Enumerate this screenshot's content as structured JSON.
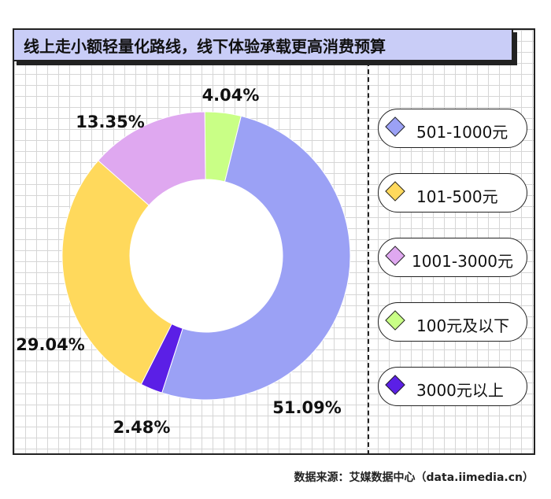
{
  "title": "线上走小额轻量化路线，线下体验承载更高消费预算",
  "source": "数据来源：艾媒数据中心（data.iimedia.cn）",
  "chart_data": {
    "type": "pie",
    "donut": true,
    "slices": [
      {
        "label": "501-1000元",
        "value": 51.09,
        "pct_label": "51.09%",
        "color": "#9ba1f5"
      },
      {
        "label": "3000元以上",
        "value": 2.48,
        "pct_label": "2.48%",
        "color": "#5b1fe6"
      },
      {
        "label": "101-500元",
        "value": 29.04,
        "pct_label": "29.04%",
        "color": "#ffd95c"
      },
      {
        "label": "1001-3000元",
        "value": 13.35,
        "pct_label": "13.35%",
        "color": "#dfa8f0"
      },
      {
        "label": "100元及以下",
        "value": 4.04,
        "pct_label": "4.04%",
        "color": "#c9ff86"
      }
    ],
    "legend": [
      {
        "label": "501-1000元",
        "color": "#9ba1f5"
      },
      {
        "label": "101-500元",
        "color": "#ffd95c"
      },
      {
        "label": "1001-3000元",
        "color": "#dfa8f0"
      },
      {
        "label": "100元及以下",
        "color": "#c9ff86"
      },
      {
        "label": "3000元以上",
        "color": "#5b1fe6"
      }
    ],
    "legend_position": "right"
  }
}
